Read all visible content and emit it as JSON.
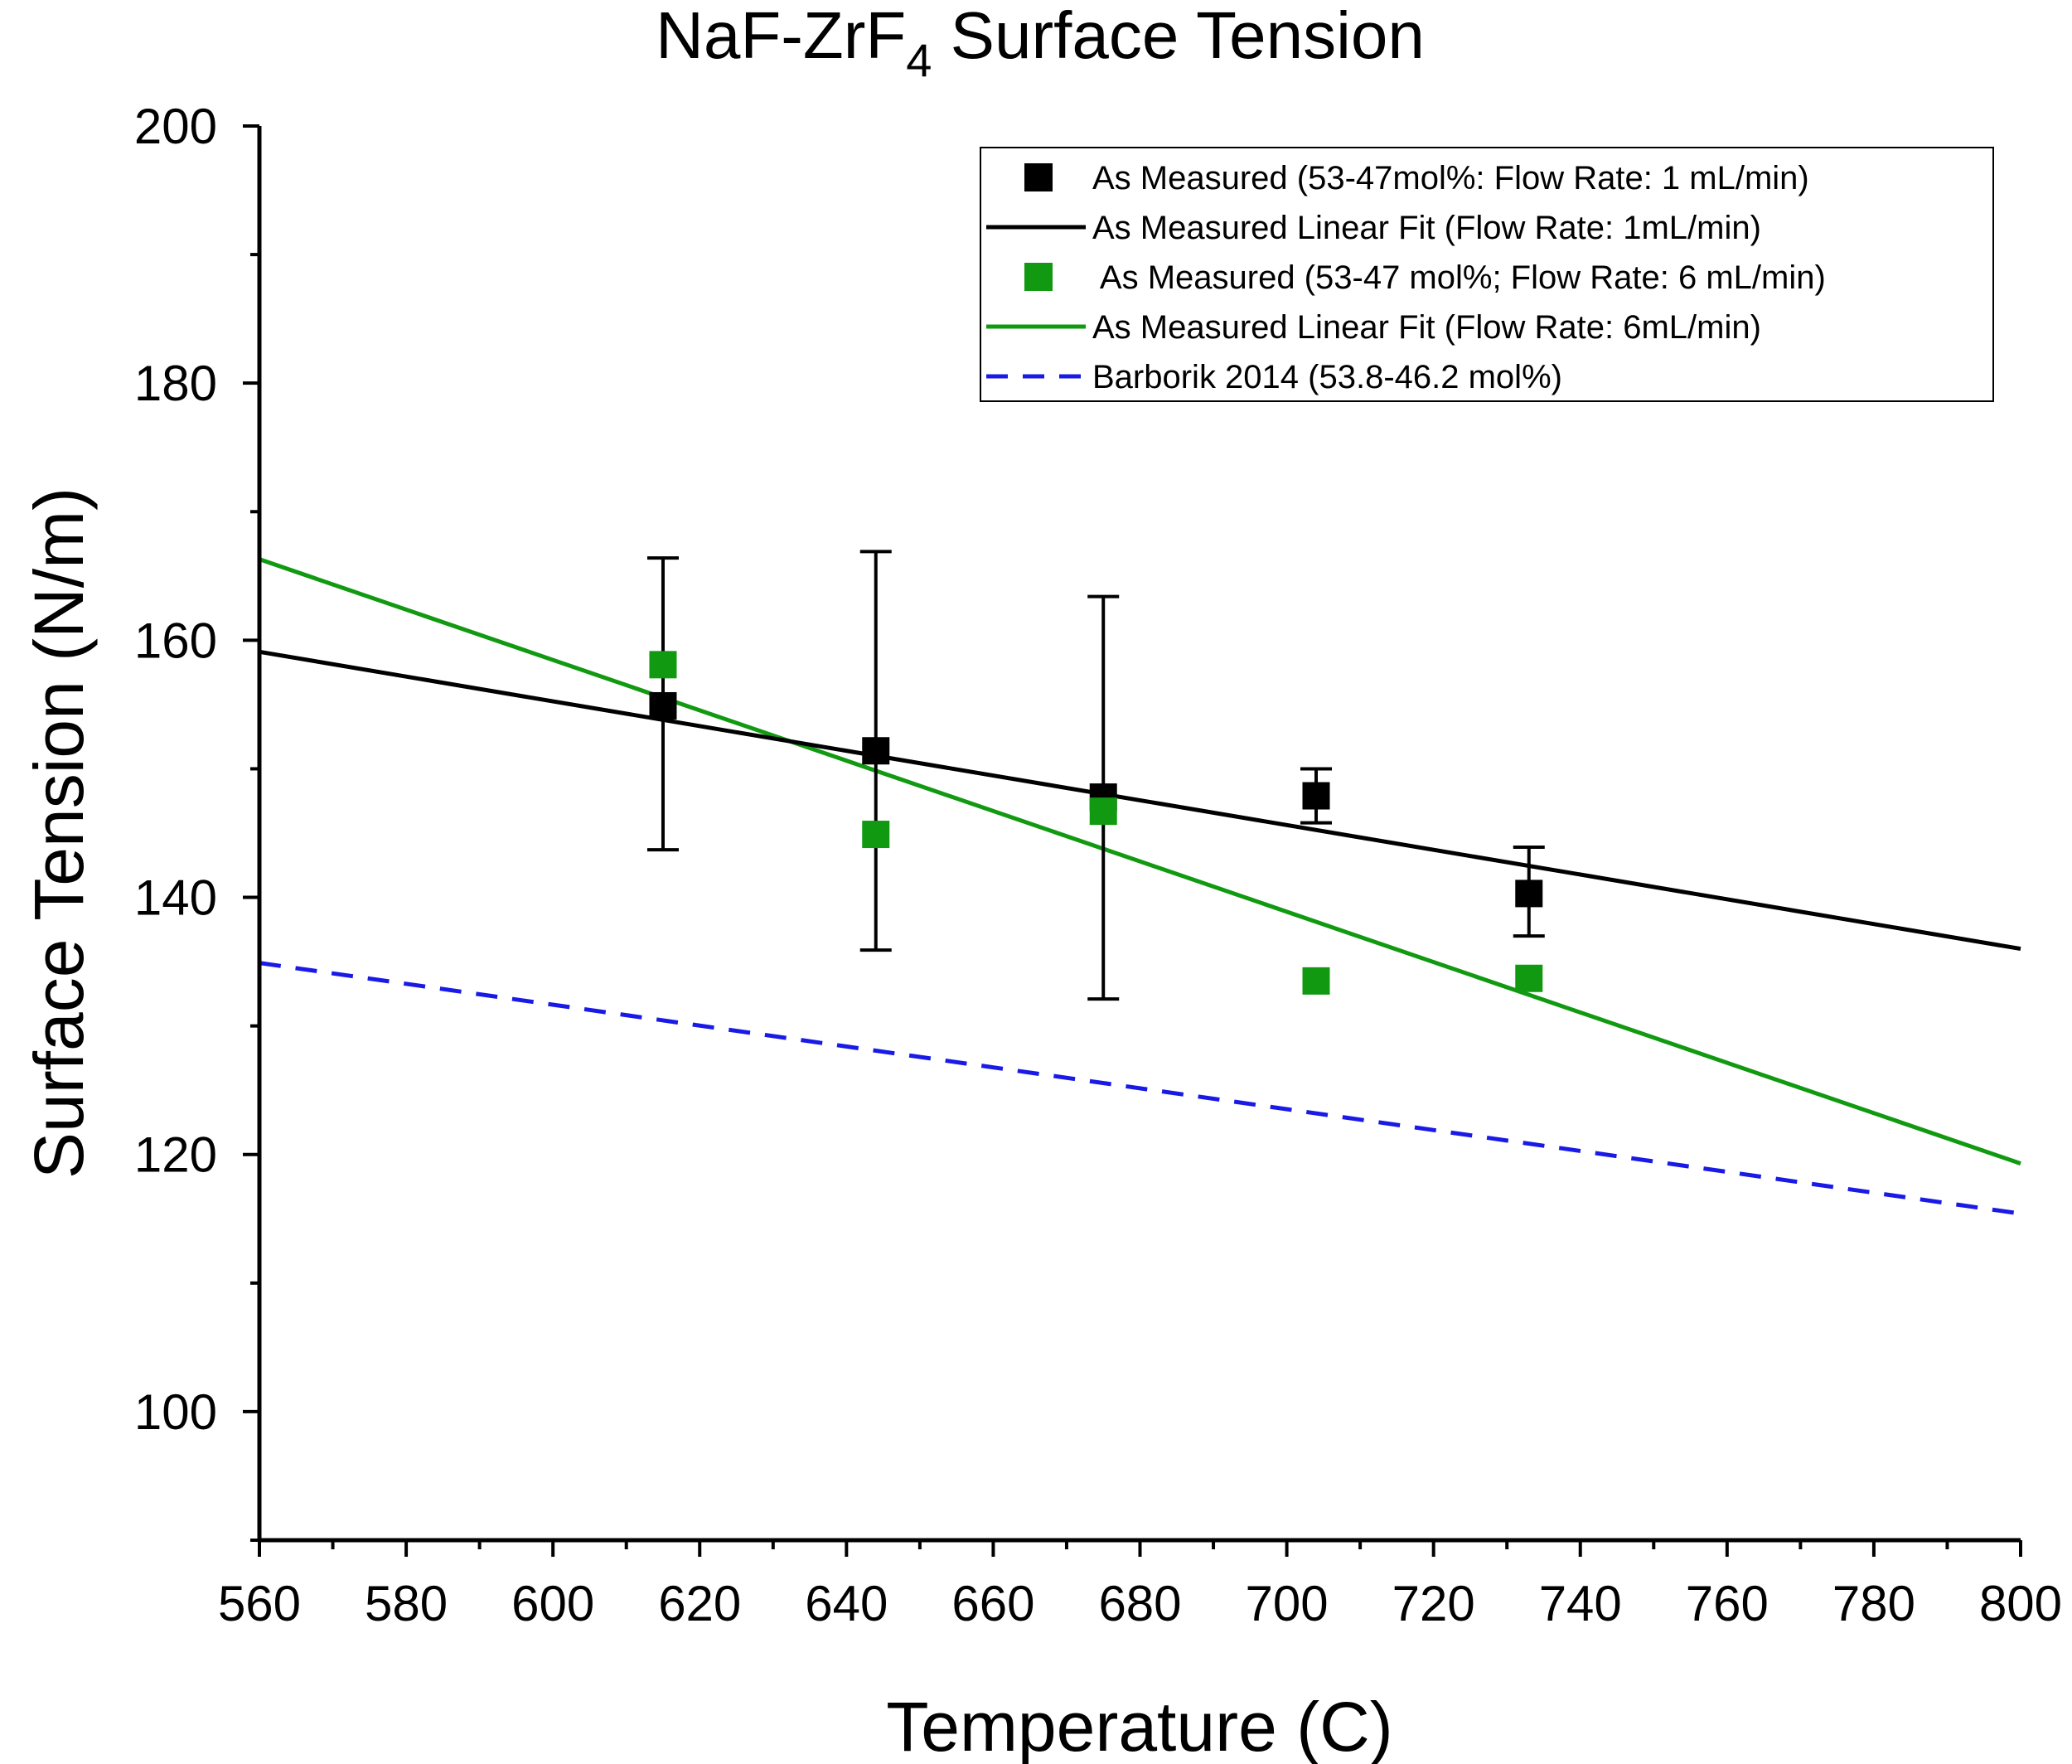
{
  "chart_data": {
    "type": "scatter",
    "title": {
      "main": "NaF-ZrF",
      "subscript": "4",
      "suffix": " Surface Tension"
    },
    "xlabel": "Temperature (C)",
    "ylabel": "Surface Tension (N/m)",
    "xlim": [
      560,
      800
    ],
    "ylim": [
      90,
      200
    ],
    "xticks": [
      560,
      580,
      600,
      620,
      640,
      660,
      680,
      700,
      720,
      740,
      760,
      780,
      800
    ],
    "xticks_minor": [
      570,
      590,
      610,
      630,
      650,
      670,
      690,
      710,
      730,
      750,
      770,
      790
    ],
    "yticks": [
      100,
      120,
      140,
      160,
      180,
      200
    ],
    "yticks_minor": [
      90,
      110,
      130,
      150,
      170,
      190
    ],
    "grid": false,
    "legend_position": "top-right",
    "series": [
      {
        "name": "As Measured (53-47mol%: Flow Rate: 1 mL/min)",
        "kind": "points",
        "color": "#000000",
        "marker": "square",
        "x": [
          615,
          644,
          675,
          704,
          733
        ],
        "y": [
          154.9,
          151.4,
          147.8,
          147.9,
          140.3
        ],
        "err_low": [
          143.7,
          135.9,
          132.1,
          145.8,
          137.0
        ],
        "err_high": [
          166.4,
          166.9,
          163.4,
          150.0,
          143.9
        ]
      },
      {
        "name": "As Measured Linear Fit (Flow Rate: 1mL/min)",
        "kind": "line",
        "color": "#000000",
        "dash": "solid",
        "x": [
          560,
          800
        ],
        "y": [
          159.1,
          136.0
        ]
      },
      {
        "name": " As Measured (53-47 mol%; Flow Rate: 6 mL/min)",
        "kind": "points",
        "color": "#119a11",
        "marker": "square",
        "x": [
          615,
          644,
          675,
          704,
          733
        ],
        "y": [
          158.1,
          144.9,
          146.7,
          133.5,
          133.7
        ]
      },
      {
        "name": "As Measured Linear Fit (Flow Rate: 6mL/min)",
        "kind": "line",
        "color": "#119a11",
        "dash": "solid",
        "x": [
          560,
          800
        ],
        "y": [
          166.3,
          119.3
        ]
      },
      {
        "name": "Barborik 2014 (53.8-46.2 mol%)",
        "kind": "line",
        "color": "#1a1ae6",
        "dash": "dashed",
        "x": [
          560,
          800
        ],
        "y": [
          134.9,
          115.4
        ]
      }
    ]
  }
}
